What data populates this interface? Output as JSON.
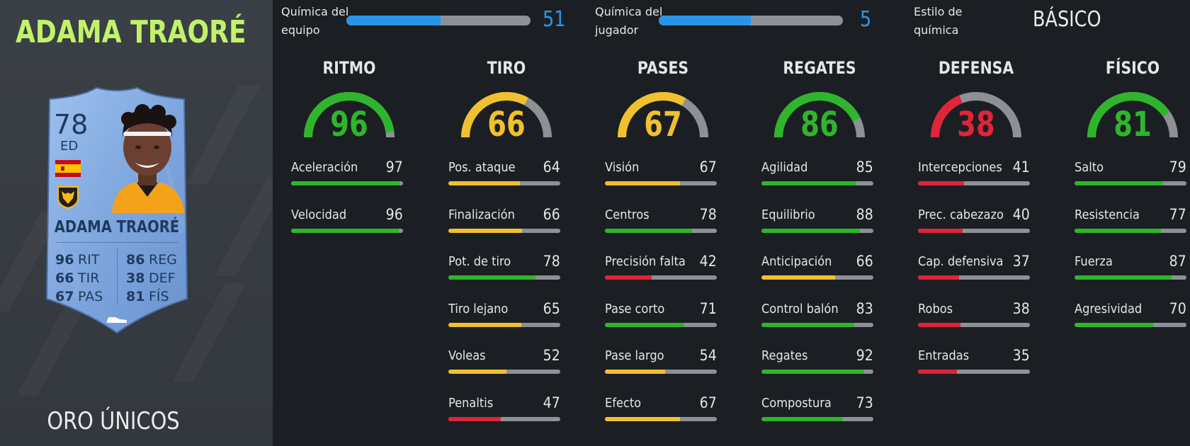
{
  "player": {
    "name": "ADAMA TRAORÉ",
    "card_type": "ORO ÚNICOS"
  },
  "card": {
    "rating": "78",
    "position": "ED",
    "name": "ADAMA TRAORÉ",
    "flag_icon": "spain-flag-icon",
    "club_icon": "wolves-crest-icon",
    "boot_icon": "boot-icon",
    "stats_left": [
      {
        "value": "96",
        "label": "RIT"
      },
      {
        "value": "66",
        "label": "TIR"
      },
      {
        "value": "67",
        "label": "PAS"
      }
    ],
    "stats_right": [
      {
        "value": "86",
        "label": "REG"
      },
      {
        "value": "38",
        "label": "DEF"
      },
      {
        "value": "81",
        "label": "FÍS"
      }
    ]
  },
  "chemistry": {
    "team_label_1": "Química del",
    "team_label_2": "equipo",
    "team_value": "51",
    "team_fraction": 0.51,
    "player_label_1": "Química del",
    "player_label_2": "jugador",
    "player_value": "5",
    "player_fraction": 0.5,
    "style_label_1": "Estilo de",
    "style_label_2": "química",
    "style_value": "BÁSICO"
  },
  "colors": {
    "green": "#2fb52b",
    "yellow": "#f0c12e",
    "red": "#e0243a",
    "track": "#8d9196",
    "blue": "#2a95e8"
  },
  "categories": [
    {
      "name": "RITMO",
      "value": 96,
      "attributes": [
        {
          "name": "Aceleración",
          "value": 97
        },
        {
          "name": "Velocidad",
          "value": 96
        }
      ]
    },
    {
      "name": "TIRO",
      "value": 66,
      "attributes": [
        {
          "name": "Pos. ataque",
          "value": 64
        },
        {
          "name": "Finalización",
          "value": 66
        },
        {
          "name": "Pot. de tiro",
          "value": 78
        },
        {
          "name": "Tiro lejano",
          "value": 65
        },
        {
          "name": "Voleas",
          "value": 52
        },
        {
          "name": "Penaltis",
          "value": 47
        }
      ]
    },
    {
      "name": "PASES",
      "value": 67,
      "attributes": [
        {
          "name": "Visión",
          "value": 67
        },
        {
          "name": "Centros",
          "value": 78
        },
        {
          "name": "Precisión falta",
          "value": 42
        },
        {
          "name": "Pase corto",
          "value": 71
        },
        {
          "name": "Pase largo",
          "value": 54
        },
        {
          "name": "Efecto",
          "value": 67
        }
      ]
    },
    {
      "name": "REGATES",
      "value": 86,
      "attributes": [
        {
          "name": "Agilidad",
          "value": 85
        },
        {
          "name": "Equilibrio",
          "value": 88
        },
        {
          "name": "Anticipación",
          "value": 66
        },
        {
          "name": "Control balón",
          "value": 83
        },
        {
          "name": "Regates",
          "value": 92
        },
        {
          "name": "Compostura",
          "value": 73
        }
      ]
    },
    {
      "name": "DEFENSA",
      "value": 38,
      "attributes": [
        {
          "name": "Intercepciones",
          "value": 41
        },
        {
          "name": "Prec. cabezazo",
          "value": 40
        },
        {
          "name": "Cap. defensiva",
          "value": 37
        },
        {
          "name": "Robos",
          "value": 38
        },
        {
          "name": "Entradas",
          "value": 35
        }
      ]
    },
    {
      "name": "FÍSICO",
      "value": 81,
      "attributes": [
        {
          "name": "Salto",
          "value": 79
        },
        {
          "name": "Resistencia",
          "value": 77
        },
        {
          "name": "Fuerza",
          "value": 87
        },
        {
          "name": "Agresividad",
          "value": 70
        }
      ]
    }
  ]
}
